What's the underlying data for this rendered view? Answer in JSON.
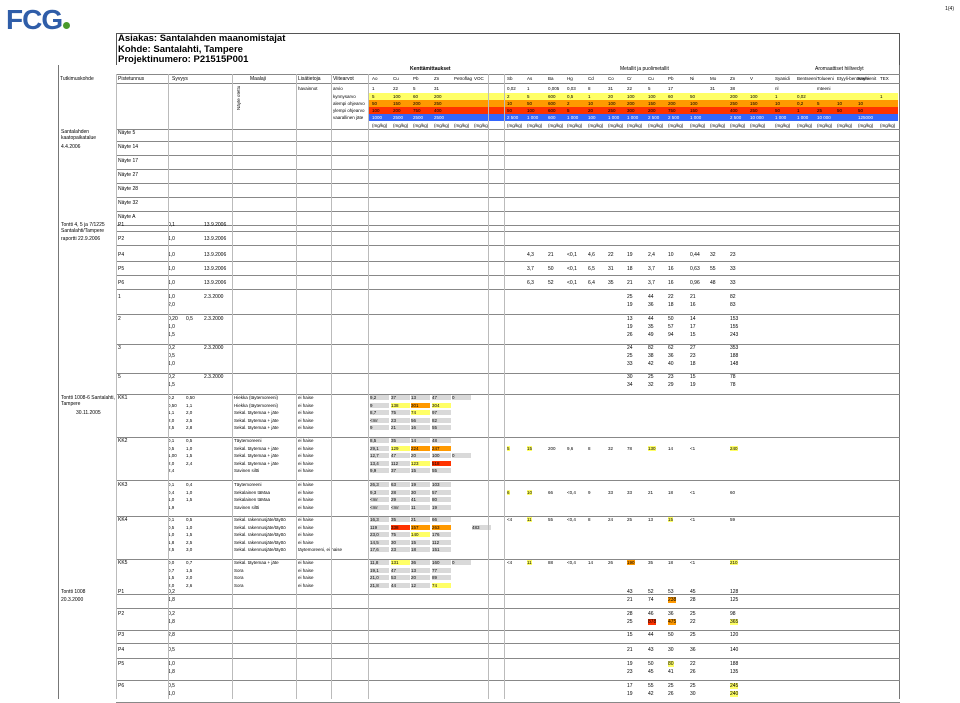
{
  "logo": "FCG",
  "page_number": "1(4)",
  "header": {
    "client": "Asiakas: Santalahden maanomistajat",
    "site": "Kohde: Santalahti, Tampere",
    "project": "Projektinumero: P21515P001"
  },
  "table_head": {
    "contaminant_label": "Kenttämittaukset",
    "metals_label": "Metallit ja puolimetallit",
    "aromatic_label": "Aromaattiset hiilivedyt",
    "left_labels": [
      "Tutkimuskohde",
      "Pistetunnus",
      "Syvyys",
      "Maalaji",
      "Lisätietoja",
      "Viitearvot"
    ],
    "left_sub": [
      "arvio",
      "havainnot",
      "luokitusten pit.",
      "kynnysarvo",
      "alempi ohjearvo",
      "ylempi ohjearvo",
      "vaarallinen jäte"
    ],
    "rotated_label": "Näyte otettu",
    "columns": [
      "Ao",
      "Cu",
      "Pb",
      "Zn",
      "Petroflag",
      "VOC",
      "Sb",
      "As",
      "Ba",
      "Hg",
      "Cd",
      "Co",
      "Cr",
      "Cu",
      "Pb",
      "Ni",
      "Mo",
      "Zn",
      "V",
      "Syanidi",
      "Bentseeni",
      "Tolueeni",
      "Etyyli-bentseeni",
      "Ksyleenit",
      "TEX"
    ],
    "row1": [
      "1",
      "22",
      "5",
      "31",
      "",
      "",
      "0,02",
      "1",
      "0,005",
      "0,03",
      "8",
      "31",
      "22",
      "5",
      "17",
      "",
      "31",
      "38",
      "",
      "nl",
      "",
      "mteeni",
      "",
      "",
      ""
    ],
    "row_kynnys": [
      "5",
      "100",
      "60",
      "200",
      "",
      "",
      "2",
      "5",
      "600",
      "0,5",
      "1",
      "20",
      "100",
      "100",
      "60",
      "50",
      "",
      "200",
      "100",
      "1",
      "0,02",
      "",
      "",
      "",
      "1"
    ],
    "row_alempi": [
      "50",
      "150",
      "200",
      "250",
      "",
      "",
      "10",
      "50",
      "600",
      "2",
      "10",
      "100",
      "200",
      "150",
      "200",
      "100",
      "",
      "250",
      "150",
      "10",
      "0,2",
      "5",
      "10",
      "10",
      ""
    ],
    "row_ylempi": [
      "100",
      "200",
      "750",
      "400",
      "",
      "",
      "50",
      "100",
      "600",
      "5",
      "20",
      "250",
      "300",
      "200",
      "750",
      "150",
      "",
      "400",
      "250",
      "50",
      "1",
      "25",
      "50",
      "50",
      ""
    ],
    "row_vaarallinen": [
      "1000",
      "2500",
      "2500",
      "2500",
      "",
      "",
      "2 500",
      "1 000",
      "600",
      "1 000",
      "100",
      "1 000",
      "1 000",
      "2 500",
      "2 500",
      "1 000",
      "",
      "2 500",
      "10 000",
      "1 000",
      "1 000",
      "10 000",
      "",
      "125000",
      ""
    ],
    "unit": "(mg/kg)"
  },
  "sections": [
    {
      "site": "Santalahden kaatopaikatalue",
      "date": "4.4.2006",
      "samples": [
        "Näyte 5",
        "Näyte 14",
        "Näyte 17",
        "Näyte 27",
        "Näyte 28",
        "Näyte 32",
        "Näyte A"
      ]
    },
    {
      "site": "Tontti 4, 5 ja 7/1225 Santalahti/Tampere",
      "date": "raportti 22.9.2006",
      "samples": [
        {
          "id": "P1",
          "depth": "0,1",
          "date": "13.9.2006",
          "values": []
        },
        {
          "id": "P2",
          "depth": "1,0",
          "date": "13.9.2006",
          "values": []
        },
        {
          "id": "P4",
          "depth": "1,0",
          "date": "13.9.2006",
          "values": [
            "4,3",
            "21",
            "<0,1",
            "4,6",
            "22",
            "19",
            "2,4",
            "10",
            "0,44",
            "32",
            "23"
          ]
        },
        {
          "id": "P5",
          "depth": "1,0",
          "date": "13.9.2006",
          "values": [
            "3,7",
            "50",
            "<0,1",
            "6,5",
            "31",
            "18",
            "3,7",
            "16",
            "0,63",
            "55",
            "33"
          ]
        },
        {
          "id": "P6",
          "depth": "1,0",
          "date": "13.9.2006",
          "values": [
            "6,3",
            "52",
            "<0,1",
            "6,4",
            "35",
            "21",
            "3,7",
            "16",
            "0,96",
            "48",
            "33"
          ]
        }
      ]
    },
    {
      "groups": [
        {
          "id": "1",
          "depths": [
            "1,0",
            "2,0"
          ],
          "date": "2.3.2000",
          "vals": [
            [
              "25",
              "44",
              "22",
              "21",
              "82"
            ],
            [
              "19",
              "36",
              "18",
              "16",
              "83"
            ]
          ]
        },
        {
          "id": "2",
          "depths": [
            "0,20",
            "1,0",
            "1,5"
          ],
          "depth2": "0,5",
          "date": "2.3.2000",
          "vals": [
            [
              "13",
              "44",
              "50",
              "14",
              "153"
            ],
            [
              "19",
              "35",
              "57",
              "17",
              "155"
            ],
            [
              "26",
              "49",
              "94",
              "15",
              "243"
            ]
          ]
        },
        {
          "id": "3",
          "depths": [
            "0,2",
            "0,5",
            "1,0"
          ],
          "date": "2.3.2000",
          "vals": [
            [
              "24",
              "82",
              "62",
              "27",
              "353"
            ],
            [
              "25",
              "38",
              "36",
              "23",
              "188"
            ],
            [
              "33",
              "42",
              "40",
              "18",
              "148"
            ]
          ]
        },
        {
          "id": "5",
          "depths": [
            "0,2",
            "1,5"
          ],
          "date": "2.3.2000",
          "vals": [
            [
              "30",
              "25",
              "23",
              "15",
              "78"
            ],
            [
              "34",
              "32",
              "29",
              "19",
              "78"
            ]
          ]
        }
      ]
    },
    {
      "site": "Tontti 1008-6 Santalahti, Tampere",
      "date": "30.11.2005",
      "groups": [
        {
          "id": "KK1",
          "rows": [
            {
              "d1": "0,2",
              "d2": "0,50",
              "soil": "Hiekka (täytemoreeni)",
              "obs": "ei haise",
              "v": [
                "9,2",
                "37",
                "13",
                "47",
                "0"
              ]
            },
            {
              "d1": "0,50",
              "d2": "1,1",
              "soil": "Hiekka (täytemoreeni)",
              "obs": "ei haise",
              "v": [
                "9",
                "138",
                "301",
                "304"
              ]
            },
            {
              "d1": "1,1",
              "d2": "2,0",
              "soil": "Sekal. täytemaa + jäte",
              "obs": "ei haise",
              "v": [
                "8,7",
                "75",
                "74",
                "97"
              ]
            },
            {
              "d1": "2,0",
              "d2": "2,5",
              "soil": "Sekal. täytemaa + jäte",
              "obs": "ei haise",
              "v": [
                "<mr",
                "23",
                "56",
                "82"
              ]
            },
            {
              "d1": "2,5",
              "d2": "2,8",
              "soil": "Sekal. täytemaa + jäte",
              "obs": "ei haise",
              "v": [
                "9",
                "21",
                "16",
                "55"
              ]
            }
          ]
        },
        {
          "id": "KK2",
          "rows": [
            {
              "d1": "0,1",
              "d2": "0,5",
              "soil": "Täytemoreeni",
              "obs": "ei haise",
              "v": [
                "8,5",
                "35",
                "14",
                "48"
              ]
            },
            {
              "d1": "0,5",
              "d2": "1,0",
              "soil": "Sekal. täytemaa + jäte",
              "obs": "ei haise",
              "v": [
                "29,1",
                "129",
                "224",
                "247"
              ],
              "m": [
                "5",
                "15",
                "200",
                "9,6",
                "8",
                "32",
                "78",
                "130",
                "14",
                "<1",
                "240"
              ]
            },
            {
              "d1": "1,00",
              "d2": "1,5",
              "soil": "Sekal. täytemaa + jäte",
              "obs": "ei haise",
              "v": [
                "12,7",
                "47",
                "20",
                "100",
                "0"
              ]
            },
            {
              "d1": "2,0",
              "d2": "2,4",
              "soil": "Sekal. täytemaa + jäte",
              "obs": "ei haise",
              "v": [
                "13,4",
                "112",
                "123",
                "518"
              ]
            },
            {
              "d1": "2,4",
              "d2": "",
              "soil": "Savinen siltti",
              "obs": "ei haise",
              "v": [
                "9,9",
                "37",
                "15",
                "55"
              ]
            }
          ]
        },
        {
          "id": "KK3",
          "rows": [
            {
              "d1": "0,1",
              "d2": "0,4",
              "soil": "Täytemoreeni",
              "obs": "ei haise",
              "v": [
                "26,3",
                "63",
                "19",
                "103"
              ]
            },
            {
              "d1": "0,4",
              "d2": "1,0",
              "soil": "Sekalainen täMaa",
              "obs": "ei haise",
              "v": [
                "9,3",
                "28",
                "30",
                "57"
              ],
              "m": [
                "6",
                "10",
                "66",
                "<0,4",
                "9",
                "33",
                "33",
                "21",
                "18",
                "<1",
                "60"
              ]
            },
            {
              "d1": "1,0",
              "d2": "1,5",
              "soil": "Sekalainen täMaa",
              "obs": "ei haise",
              "v": [
                "<mr",
                "29",
                "41",
                "80"
              ]
            },
            {
              "d1": "1,9",
              "d2": "",
              "soil": "Savinen siltti",
              "obs": "ei haise",
              "v": [
                "<mr",
                "<mr",
                "11",
                "19"
              ]
            }
          ]
        },
        {
          "id": "KK4",
          "rows": [
            {
              "d1": "0,1",
              "d2": "0,5",
              "soil": "Sekal. rakennusjäte/täyttö",
              "obs": "ei haise",
              "v": [
                "16,3",
                "35",
                "21",
                "66"
              ],
              "m": [
                "<4",
                "11",
                "55",
                "<0,4",
                "8",
                "24",
                "25",
                "13",
                "15",
                "<1",
                "59"
              ]
            },
            {
              "d1": "0,5",
              "d2": "1,0",
              "soil": "Sekal. rakennusjäte/täyttö",
              "obs": "ei haise",
              "v": [
                "119",
                "338",
                "157",
                "263",
                "",
                "483"
              ]
            },
            {
              "d1": "1,0",
              "d2": "1,5",
              "soil": "Sekal. rakennusjäte/täyttö",
              "obs": "ei haise",
              "v": [
                "23,0",
                "75",
                "140",
                "176"
              ]
            },
            {
              "d1": "1,8",
              "d2": "2,5",
              "soil": "Sekal. rakennusjäte/täyttö",
              "obs": "ei haise",
              "v": [
                "14,5",
                "30",
                "15",
                "112"
              ]
            },
            {
              "d1": "2,5",
              "d2": "3,0",
              "soil": "Sekal. rakennusjäte/täyttö",
              "obs": "täytemoreeni, ei haise",
              "v": [
                "17,6",
                "23",
                "18",
                "151"
              ]
            }
          ]
        },
        {
          "id": "KK5",
          "rows": [
            {
              "d1": "0,0",
              "d2": "0,7",
              "soil": "Sekal. täytemaa + jäte",
              "obs": "ei haise",
              "v": [
                "11,8",
                "131",
                "36",
                "160",
                "0"
              ],
              "m": [
                "<4",
                "11",
                "88",
                "<0,4",
                "14",
                "26",
                "190",
                "35",
                "18",
                "<1",
                "210"
              ]
            },
            {
              "d1": "0,7",
              "d2": "1,5",
              "soil": "Sora",
              "obs": "ei haise",
              "v": [
                "19,1",
                "47",
                "13",
                "77"
              ]
            },
            {
              "d1": "1,5",
              "d2": "2,0",
              "soil": "Sora",
              "obs": "ei haise",
              "v": [
                "21,0",
                "53",
                "20",
                "89"
              ]
            },
            {
              "d1": "2,0",
              "d2": "2,6",
              "soil": "Sora",
              "obs": "ei haise",
              "v": [
                "21,8",
                "44",
                "12",
                "74"
              ]
            }
          ]
        }
      ]
    },
    {
      "site": "Tontti 1008",
      "date": "20.3.2000",
      "groups": [
        {
          "id": "P1",
          "depths": [
            "0,2",
            "1,8"
          ],
          "vals": [
            [
              "43",
              "52",
              "53",
              "45",
              "128"
            ],
            [
              "21",
              "74",
              "238",
              "28",
              "125"
            ]
          ]
        },
        {
          "id": "P2",
          "depths": [
            "0,2",
            "1,8"
          ],
          "vals": [
            [
              "28",
              "46",
              "36",
              "25",
              "98"
            ],
            [
              "25",
              "878",
              "475",
              "22",
              "365"
            ]
          ]
        },
        {
          "id": "P3",
          "depths": [
            "2,8"
          ],
          "vals": [
            [
              "15",
              "44",
              "50",
              "25",
              "120"
            ]
          ]
        },
        {
          "id": "P4",
          "depths": [
            "0,5"
          ],
          "vals": [
            [
              "21",
              "43",
              "30",
              "36",
              "140"
            ]
          ]
        },
        {
          "id": "P5",
          "depths": [
            "1,0",
            "1,8"
          ],
          "vals": [
            [
              "19",
              "50",
              "80",
              "22",
              "188"
            ],
            [
              "23",
              "45",
              "41",
              "26",
              "135"
            ]
          ]
        },
        {
          "id": "P6",
          "depths": [
            "0,5",
            "1,0"
          ],
          "vals": [
            [
              "17",
              "55",
              "25",
              "25",
              "245"
            ],
            [
              "19",
              "42",
              "26",
              "30",
              "240"
            ]
          ]
        }
      ]
    }
  ],
  "colors": {
    "kynnys": "#ffff66",
    "alempi": "#ff9900",
    "ylempi": "#ff3300",
    "vaarallinen": "#3366ff",
    "hilite_yellow": "#ffff66",
    "hilite_orange": "#ff9900",
    "hilite_red": "#ff3300",
    "field": "#d9d9d9"
  }
}
